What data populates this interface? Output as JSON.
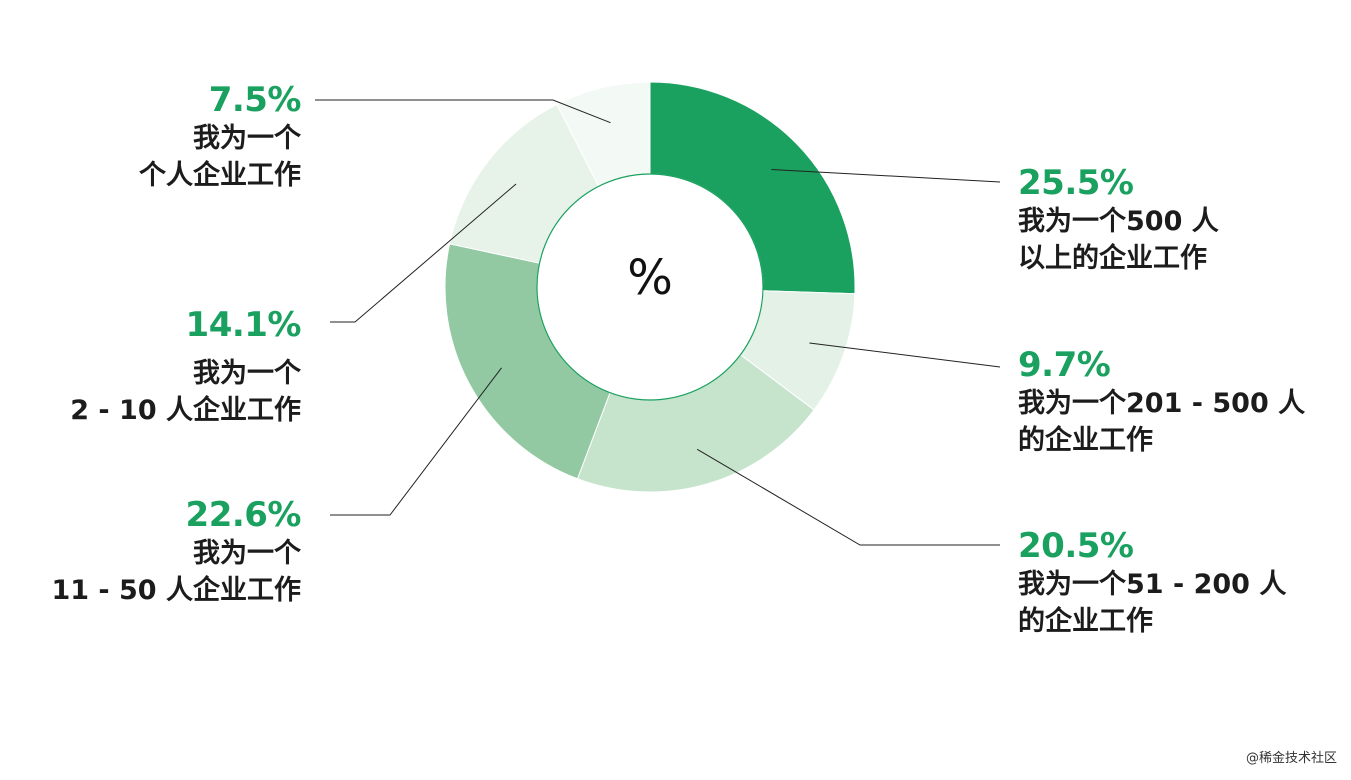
{
  "chart_data": {
    "type": "pie",
    "center_label": "%",
    "slices": [
      {
        "percent_label": "25.5%",
        "value": 25.5,
        "label": "我为一个500 人\n以上的企业工作",
        "color": "#1aa15f"
      },
      {
        "percent_label": "9.7%",
        "value": 9.7,
        "label": "我为一个201 - 500 人\n的企业工作",
        "color": "#e3f1e6"
      },
      {
        "percent_label": "20.5%",
        "value": 20.5,
        "label": "我为一个51 - 200 人\n的企业工作",
        "color": "#c6e3cc"
      },
      {
        "percent_label": "22.6%",
        "value": 22.6,
        "label": "我为一个\n11 - 50 人企业工作",
        "color": "#93c9a2"
      },
      {
        "percent_label": "14.1%",
        "value": 14.1,
        "label": "我为一个\n2 - 10 人企业工作",
        "color": "#e7f2e9"
      },
      {
        "percent_label": "7.5%",
        "value": 7.5,
        "label": "我为一个\n个人企业工作",
        "color": "#f3f9f5"
      }
    ]
  },
  "watermark": "@稀金技术社区"
}
